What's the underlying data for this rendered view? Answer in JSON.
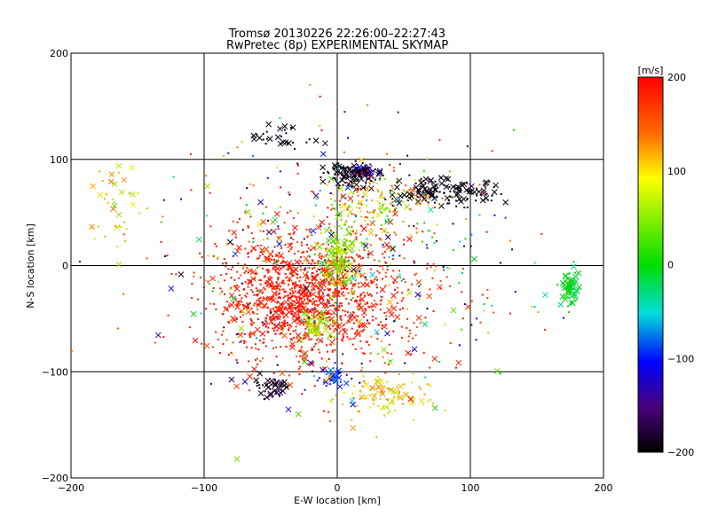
{
  "chart_data": {
    "type": "scatter",
    "title": "Tromsø 20130226 22:26:00–22:27:43",
    "subtitle": "RwPretec (8p) EXPERIMENTAL SKYMAP",
    "xlabel": "E-W location [km]",
    "ylabel": "N-S location [km]",
    "xlim": [
      -200,
      200
    ],
    "ylim": [
      -200,
      200
    ],
    "x_ticks": [
      -200,
      -100,
      0,
      100,
      200
    ],
    "y_ticks": [
      -200,
      -100,
      0,
      100,
      200
    ],
    "x_tick_labels": [
      "−200",
      "−100",
      "0",
      "100",
      "200"
    ],
    "y_tick_labels": [
      "−200",
      "−100",
      "0",
      "100",
      "200"
    ],
    "grid": true,
    "colorbar": {
      "label": "[m/s]",
      "range": [
        -200,
        200
      ],
      "ticks": [
        200,
        100,
        0,
        -100,
        -200
      ],
      "tick_labels": [
        "200",
        "100",
        "0",
        "−100",
        "−200"
      ],
      "colormap": "black-purple-blue-cyan-green-yellow-orange-red"
    },
    "marker_types": [
      "dot",
      "cross"
    ],
    "clusters": [
      {
        "cx": -30,
        "cy": -30,
        "sx": 55,
        "sy": 45,
        "n": 900,
        "vmin": 180,
        "vmax": 200,
        "cross_ratio": 0.12
      },
      {
        "cx": -10,
        "cy": -20,
        "sx": 90,
        "sy": 75,
        "n": 500,
        "vmin": 150,
        "vmax": 200,
        "cross_ratio": 0.15
      },
      {
        "cx": 0,
        "cy": 10,
        "sx": 12,
        "sy": 30,
        "n": 180,
        "vmin": 20,
        "vmax": 90,
        "cross_ratio": 0.25
      },
      {
        "cx": -15,
        "cy": -55,
        "sx": 10,
        "sy": 10,
        "n": 60,
        "vmin": 30,
        "vmax": 90,
        "cross_ratio": 0.4
      },
      {
        "cx": 20,
        "cy": 88,
        "sx": 8,
        "sy": 6,
        "n": 60,
        "vmin": -160,
        "vmax": -110,
        "cross_ratio": 0.6
      },
      {
        "cx": 10,
        "cy": 85,
        "sx": 18,
        "sy": 10,
        "n": 120,
        "vmin": -205,
        "vmax": -180,
        "cross_ratio": 0.3
      },
      {
        "cx": 80,
        "cy": 70,
        "sx": 40,
        "sy": 12,
        "n": 140,
        "vmin": -205,
        "vmax": -185,
        "cross_ratio": 0.45
      },
      {
        "cx": -40,
        "cy": 120,
        "sx": 25,
        "sy": 10,
        "n": 30,
        "vmin": -205,
        "vmax": -180,
        "cross_ratio": 0.6
      },
      {
        "cx": 175,
        "cy": -20,
        "sx": 6,
        "sy": 18,
        "n": 70,
        "vmin": -30,
        "vmax": 20,
        "cross_ratio": 0.55
      },
      {
        "cx": -50,
        "cy": -115,
        "sx": 12,
        "sy": 8,
        "n": 40,
        "vmin": -205,
        "vmax": -170,
        "cross_ratio": 0.5
      },
      {
        "cx": -5,
        "cy": -105,
        "sx": 10,
        "sy": 10,
        "n": 40,
        "vmin": -130,
        "vmax": -60,
        "cross_ratio": 0.4
      },
      {
        "cx": 35,
        "cy": -125,
        "sx": 30,
        "sy": 20,
        "n": 110,
        "vmin": 60,
        "vmax": 140,
        "cross_ratio": 0.2
      },
      {
        "cx": 30,
        "cy": 60,
        "sx": 40,
        "sy": 30,
        "n": 160,
        "vmin": 0,
        "vmax": 200,
        "cross_ratio": 0.1
      },
      {
        "cx": 0,
        "cy": 0,
        "sx": 130,
        "sy": 110,
        "n": 360,
        "vmin": -200,
        "vmax": 200,
        "cross_ratio": 0.2
      },
      {
        "cx": -165,
        "cy": 60,
        "sx": 18,
        "sy": 35,
        "n": 40,
        "vmin": 40,
        "vmax": 140,
        "cross_ratio": 0.5
      }
    ]
  }
}
